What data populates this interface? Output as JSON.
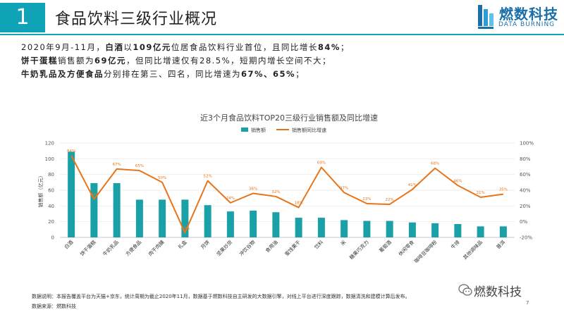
{
  "header": {
    "number": "1",
    "title": "食品饮料三级行业概况"
  },
  "logo": {
    "name": "燃数科技",
    "subtitle": "DATA BURNING"
  },
  "summary": {
    "line1": [
      "2020年9月-11月，",
      "白酒",
      "以",
      "109亿元",
      "位居食品饮料行业首位，且同比增长",
      "84%",
      "；"
    ],
    "line2": [
      "饼干蛋糕",
      "销售额为",
      "69亿元",
      "，但同比增速仅有28.5%，短期内增长空间不大；"
    ],
    "line3": [
      "牛奶乳品及方便食品",
      "分别排在第三、四名，同比增速为",
      "67%、65%",
      "；"
    ]
  },
  "chart_data": {
    "type": "bar+line",
    "title": "近3个月食品饮料TOP20三级行业销售额及同比增速",
    "legend": [
      "销售额",
      "销售额同比增速"
    ],
    "ylabel_left": "销售额（亿元）",
    "ylim_left": [
      0,
      120
    ],
    "yticks_left": [
      "0",
      "20",
      "40",
      "60",
      "80",
      "100",
      "120"
    ],
    "ylim_right": [
      -20,
      100
    ],
    "yticks_right": [
      "-20%",
      "0%",
      "20%",
      "40%",
      "60%",
      "80%",
      "100%"
    ],
    "categories": [
      "白酒",
      "饼干蛋糕",
      "牛奶乳品",
      "方便食品",
      "肉干肉脯",
      "礼盒",
      "月饼",
      "坚果炒货",
      "冲饮谷物",
      "食用油",
      "蜜饯果干",
      "饮料",
      "米",
      "糖果巧克力",
      "葡萄酒",
      "休闲零食",
      "咖啡豆咖啡粉",
      "牛排",
      "其他调味品",
      "普洱"
    ],
    "series": [
      {
        "name": "销售额",
        "values": [
          109,
          69,
          69,
          48,
          48,
          48,
          41,
          33,
          34,
          32,
          25,
          25,
          22,
          21,
          21,
          19,
          18,
          17,
          14,
          14
        ]
      },
      {
        "name": "销售额同比增速",
        "values": [
          84,
          28.5,
          67,
          65,
          50,
          -14,
          52,
          24,
          36,
          32,
          18,
          69,
          37,
          23,
          22,
          41,
          68,
          46,
          31,
          35
        ],
        "labels": [
          "84%",
          "29%",
          "67%",
          "65%",
          "50%",
          "-14%",
          "52%",
          "24%",
          "36%",
          "32%",
          "18%",
          "69%",
          "37%",
          "23%",
          "22%",
          "41%",
          "68%",
          "46%",
          "31%",
          "35%"
        ]
      }
    ],
    "colors": {
      "bar": "#1aa1a8",
      "line": "#e8751a",
      "label": "#e8751a"
    }
  },
  "footnote": {
    "line1": "数据说明：本报告覆盖平台为天猫+京东，统计周期为截止2020年11月，数据基于燃数科技自主研发的大数据引擎，对线上平台进行深度跟踪，数据清洗和建模计算后发布。",
    "line2": "数据来源：燃数科技"
  },
  "watermark": "燃数科技",
  "page_number": "7"
}
